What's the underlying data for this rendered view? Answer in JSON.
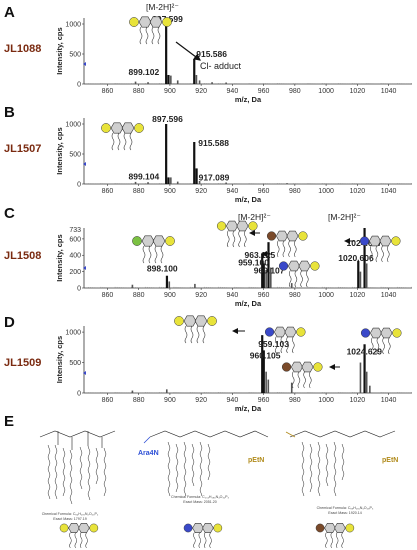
{
  "panels": {
    "A": {
      "letter": "A",
      "strain": "JL1088",
      "ion": "[M-2H]²⁻",
      "annotation": "Cl- adduct"
    },
    "B": {
      "letter": "B",
      "strain": "JL1507"
    },
    "C": {
      "letter": "C",
      "strain": "JL1508",
      "ion1": "[M-2H]²⁻",
      "ion2": "[M-2H]²⁻"
    },
    "D": {
      "letter": "D",
      "strain": "JL1509"
    },
    "E": {
      "letter": "E",
      "ara4n_label": "Ara4N",
      "petn_label_1": "pEtN",
      "petn_label_2": "pEtN",
      "formula_1": "Chemical Formula: C₉₄H₁₇₈N₂O₂₅P₂",
      "mass_1": "Exact Mass: 1797.19",
      "formula_2": "Chemical Formula: C₁₀₄H₁₉₆N₄O₃₁P₃",
      "mass_2": "Exact Mass: 2051.20",
      "formula_3": "Chemical Formula: C₉₉H₁₉₁N₃O₂₈P₃",
      "mass_3": "Exact Mass: 1920.14"
    }
  },
  "axis": {
    "ylabel": "Intensity, cps",
    "xlabel": "m/z, Da"
  },
  "chart_data": [
    {
      "type": "bar",
      "panel": "A",
      "ylim": [
        0,
        1100
      ],
      "xlim": [
        845,
        1055
      ],
      "x_ticks": [
        860,
        880,
        900,
        920,
        940,
        960,
        980,
        1000,
        1020,
        1040
      ],
      "y_ticks": [
        0,
        500,
        1000
      ],
      "peaks": [
        {
          "x": 897.599,
          "y": 1000,
          "label": "897.599"
        },
        {
          "x": 915.586,
          "y": 420,
          "label": "915.586"
        },
        {
          "x": 899.102,
          "y": 150,
          "label": "899.102"
        }
      ],
      "minor": [
        {
          "x": 878,
          "y": 40
        },
        {
          "x": 886,
          "y": 30
        },
        {
          "x": 899.1,
          "y": 150
        },
        {
          "x": 900.6,
          "y": 140
        },
        {
          "x": 905,
          "y": 60
        },
        {
          "x": 917,
          "y": 150
        },
        {
          "x": 919,
          "y": 60
        },
        {
          "x": 927,
          "y": 30
        },
        {
          "x": 936,
          "y": 25
        }
      ]
    },
    {
      "type": "bar",
      "panel": "B",
      "ylim": [
        0,
        1100
      ],
      "xlim": [
        845,
        1055
      ],
      "x_ticks": [
        860,
        880,
        900,
        920,
        940,
        960,
        980,
        1000,
        1020,
        1040
      ],
      "y_ticks": [
        0,
        500,
        1000
      ],
      "peaks": [
        {
          "x": 897.596,
          "y": 1000,
          "label": "897.596"
        },
        {
          "x": 915.588,
          "y": 700,
          "label": "915.588"
        },
        {
          "x": 917.089,
          "y": 260,
          "label": "917.089"
        },
        {
          "x": 899.104,
          "y": 110,
          "label": "899.104"
        }
      ],
      "minor": [
        {
          "x": 878,
          "y": 35
        },
        {
          "x": 886,
          "y": 30
        },
        {
          "x": 900.6,
          "y": 110
        },
        {
          "x": 905,
          "y": 40
        },
        {
          "x": 919,
          "y": 50
        },
        {
          "x": 936,
          "y": 25
        },
        {
          "x": 975,
          "y": 15
        }
      ]
    },
    {
      "type": "bar",
      "panel": "C",
      "ylim": [
        0,
        733
      ],
      "xlim": [
        845,
        1055
      ],
      "x_ticks": [
        860,
        880,
        900,
        920,
        940,
        960,
        980,
        1000,
        1020,
        1040
      ],
      "y_ticks": [
        0,
        200,
        400,
        600
      ],
      "ymax_label": "733",
      "peaks": [
        {
          "x": 963.125,
          "y": 560,
          "label": "963.125"
        },
        {
          "x": 959.1,
          "y": 420,
          "label": "959.100"
        },
        {
          "x": 960.107,
          "y": 300,
          "label": "960.107"
        },
        {
          "x": 898.1,
          "y": 150,
          "label": "898.100"
        },
        {
          "x": 1024.627,
          "y": 733,
          "label": "1024.627"
        },
        {
          "x": 1020.606,
          "y": 330,
          "label": "1020.606"
        }
      ],
      "minor": [
        {
          "x": 876,
          "y": 40
        },
        {
          "x": 899.6,
          "y": 80
        },
        {
          "x": 916,
          "y": 50
        },
        {
          "x": 961.6,
          "y": 220
        },
        {
          "x": 964.6,
          "y": 250
        },
        {
          "x": 978,
          "y": 60
        },
        {
          "x": 1022,
          "y": 200
        },
        {
          "x": 1026,
          "y": 300
        }
      ]
    },
    {
      "type": "bar",
      "panel": "D",
      "ylim": [
        0,
        1100
      ],
      "xlim": [
        845,
        1055
      ],
      "x_ticks": [
        860,
        880,
        900,
        920,
        940,
        960,
        980,
        1000,
        1020,
        1040
      ],
      "y_ticks": [
        0,
        500,
        1000
      ],
      "peaks": [
        {
          "x": 959.103,
          "y": 950,
          "label": "959.103"
        },
        {
          "x": 960.105,
          "y": 700,
          "label": "960.105"
        },
        {
          "x": 1024.629,
          "y": 800,
          "label": "1024.629"
        }
      ],
      "minor": [
        {
          "x": 876,
          "y": 40
        },
        {
          "x": 898,
          "y": 60
        },
        {
          "x": 961.6,
          "y": 350
        },
        {
          "x": 963,
          "y": 220
        },
        {
          "x": 978,
          "y": 170
        },
        {
          "x": 1022,
          "y": 500
        },
        {
          "x": 1026,
          "y": 350
        },
        {
          "x": 1028,
          "y": 120
        }
      ]
    }
  ],
  "colors": {
    "yellow": "#e8e33a",
    "green": "#7bc142",
    "blue": "#3a49c9",
    "brown": "#7a4a2a",
    "hex": "#cfcfcf",
    "ara4n": "#2d4fd6",
    "petn": "#b08a1a"
  }
}
